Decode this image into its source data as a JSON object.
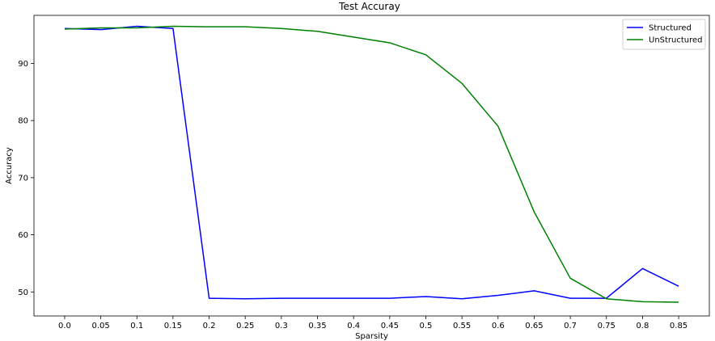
{
  "chart_data": {
    "type": "line",
    "title": "Test Accuray",
    "xlabel": "Sparsity",
    "ylabel": "Accuracy",
    "x": [
      0.0,
      0.05,
      0.1,
      0.15,
      0.2,
      0.25,
      0.3,
      0.35,
      0.4,
      0.45,
      0.5,
      0.55,
      0.6,
      0.65,
      0.7,
      0.75,
      0.8,
      0.85
    ],
    "x_tick_labels": [
      "0.0",
      "0.05",
      "0.1",
      "0.15",
      "0.2",
      "0.25",
      "0.3",
      "0.35",
      "0.4",
      "0.45",
      "0.5",
      "0.55",
      "0.6",
      "0.65",
      "0.7",
      "0.75",
      "0.8",
      "0.85"
    ],
    "y_ticks": [
      50,
      60,
      70,
      80,
      90
    ],
    "y_tick_labels": [
      "50",
      "60",
      "70",
      "80",
      "90"
    ],
    "xlim": [
      -0.0425,
      0.8925
    ],
    "ylim": [
      45.8,
      98.4
    ],
    "legend_position": "top-right",
    "series": [
      {
        "name": "Structured",
        "color": "#0000ff",
        "values": [
          96.1,
          95.9,
          96.5,
          96.1,
          48.9,
          48.8,
          48.9,
          48.9,
          48.9,
          48.9,
          49.2,
          48.8,
          49.4,
          50.2,
          48.9,
          48.9,
          54.1,
          51.0
        ]
      },
      {
        "name": "UnStructured",
        "color": "#008000",
        "values": [
          96.0,
          96.2,
          96.2,
          96.5,
          96.4,
          96.4,
          96.1,
          95.6,
          94.6,
          93.6,
          91.5,
          86.5,
          79.0,
          64.0,
          52.4,
          48.8,
          48.3,
          48.2
        ]
      }
    ]
  }
}
